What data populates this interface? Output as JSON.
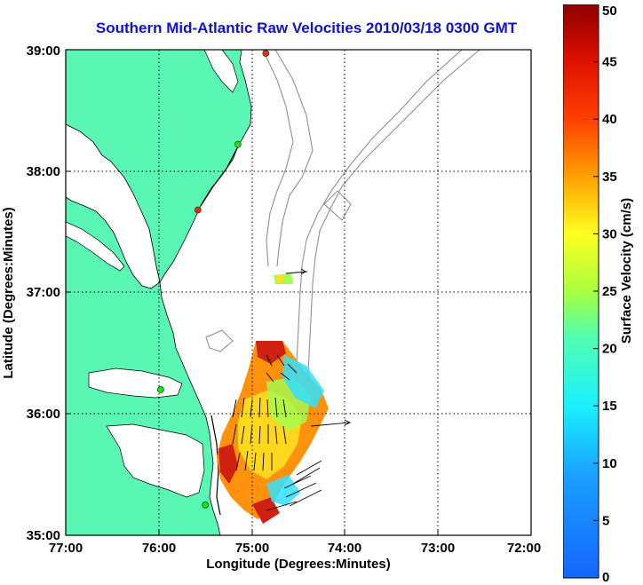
{
  "title": "Southern Mid-Atlantic Raw Velocities 2010/03/18 0300 GMT",
  "xaxis": {
    "label": "Longitude (Degrees:Minutes)",
    "ticks": [
      "77:00",
      "76:00",
      "75:00",
      "74:00",
      "73:00",
      "72:00"
    ],
    "range": [
      -77,
      -72
    ]
  },
  "yaxis": {
    "label": "Latitude (Degrees:Minutes)",
    "ticks": [
      "35:00",
      "36:00",
      "37:00",
      "38:00",
      "39:00"
    ],
    "range": [
      35,
      39
    ]
  },
  "colorbar": {
    "label": "Surface Velocity (cm/s)",
    "ticks": [
      "0",
      "5",
      "10",
      "15",
      "20",
      "25",
      "30",
      "35",
      "40",
      "45",
      "50"
    ],
    "range": [
      0,
      50
    ]
  },
  "colors": {
    "land": "#5af7b4",
    "title": "#1010d8",
    "bathymetry": "#909090"
  },
  "stations": [
    {
      "lon": -74.85,
      "lat": 38.97,
      "status": "red"
    },
    {
      "lon": -75.15,
      "lat": 38.22,
      "status": "green"
    },
    {
      "lon": -75.58,
      "lat": 37.68,
      "status": "red"
    },
    {
      "lon": -75.98,
      "lat": 36.2,
      "status": "green"
    },
    {
      "lon": -75.5,
      "lat": 35.25,
      "status": "green"
    }
  ]
}
